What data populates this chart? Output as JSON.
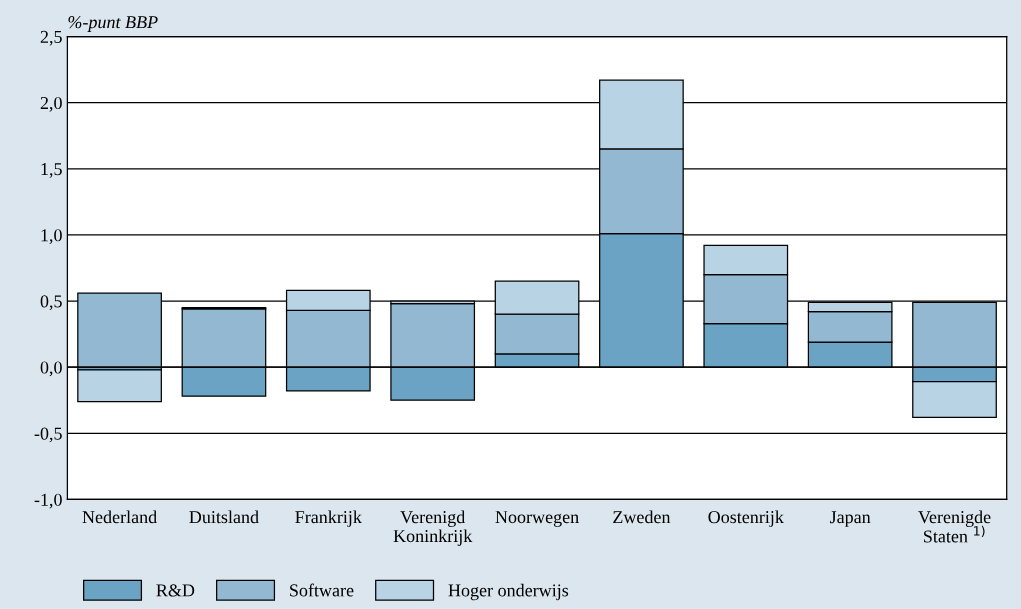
{
  "chart_data": {
    "type": "bar",
    "stacked": true,
    "ylabel": "%-punt BBP",
    "categories": [
      "Nederland",
      "Duitsland",
      "Frankrijk",
      "Verenigd\nKoninkrijk",
      "Noorwegen",
      "Zweden",
      "Oostenrijk",
      "Japan",
      "Verenigde\nStaten $^{1)}$"
    ],
    "series": [
      {
        "name": "R&D",
        "color": "#6aa3c3",
        "values": [
          -0.02,
          -0.22,
          -0.18,
          -0.25,
          0.1,
          1.01,
          0.33,
          0.19,
          -0.11
        ]
      },
      {
        "name": "Software",
        "color": "#93b9d2",
        "values": [
          0.56,
          0.44,
          0.43,
          0.48,
          0.3,
          0.64,
          0.37,
          0.23,
          0.49
        ]
      },
      {
        "name": "Hoger onderwijs",
        "color": "#b8d3e4",
        "values": [
          -0.24,
          0.01,
          0.15,
          0.02,
          0.25,
          0.52,
          0.22,
          0.07,
          -0.27
        ]
      }
    ],
    "ylim": [
      -1.0,
      2.5
    ],
    "yticks": [
      {
        "value": -1.0,
        "label": "-1,0"
      },
      {
        "value": -0.5,
        "label": "-0,5"
      },
      {
        "value": 0.0,
        "label": "0,0"
      },
      {
        "value": 0.5,
        "label": "0,5"
      },
      {
        "value": 1.0,
        "label": "1,0"
      },
      {
        "value": 1.5,
        "label": "1,5"
      },
      {
        "value": 2.0,
        "label": "2,0"
      },
      {
        "value": 2.5,
        "label": "2,5"
      }
    ],
    "grid": "y",
    "legend": "bottom"
  }
}
